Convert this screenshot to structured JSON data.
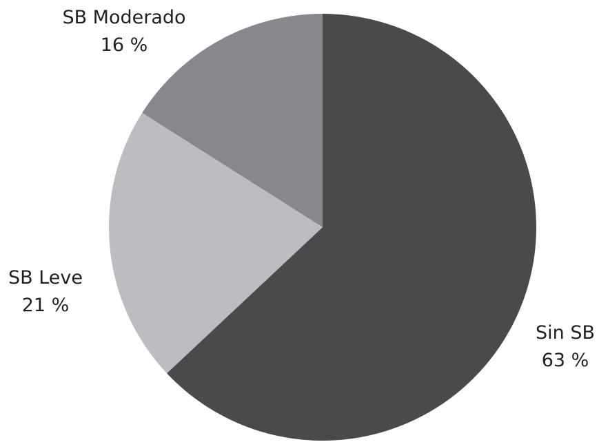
{
  "chart_data": {
    "type": "pie",
    "title": "",
    "start_angle_deg": 0,
    "direction": "clockwise",
    "slices": [
      {
        "label": "Sin SB",
        "value": 63,
        "value_label": "63 %",
        "color": "#4a4a4c"
      },
      {
        "label": "SB Leve",
        "value": 21,
        "value_label": "21 %",
        "color": "#bcbdc0"
      },
      {
        "label": "SB Moderado",
        "value": 16,
        "value_label": "16 %",
        "color": "#87888c"
      }
    ]
  }
}
